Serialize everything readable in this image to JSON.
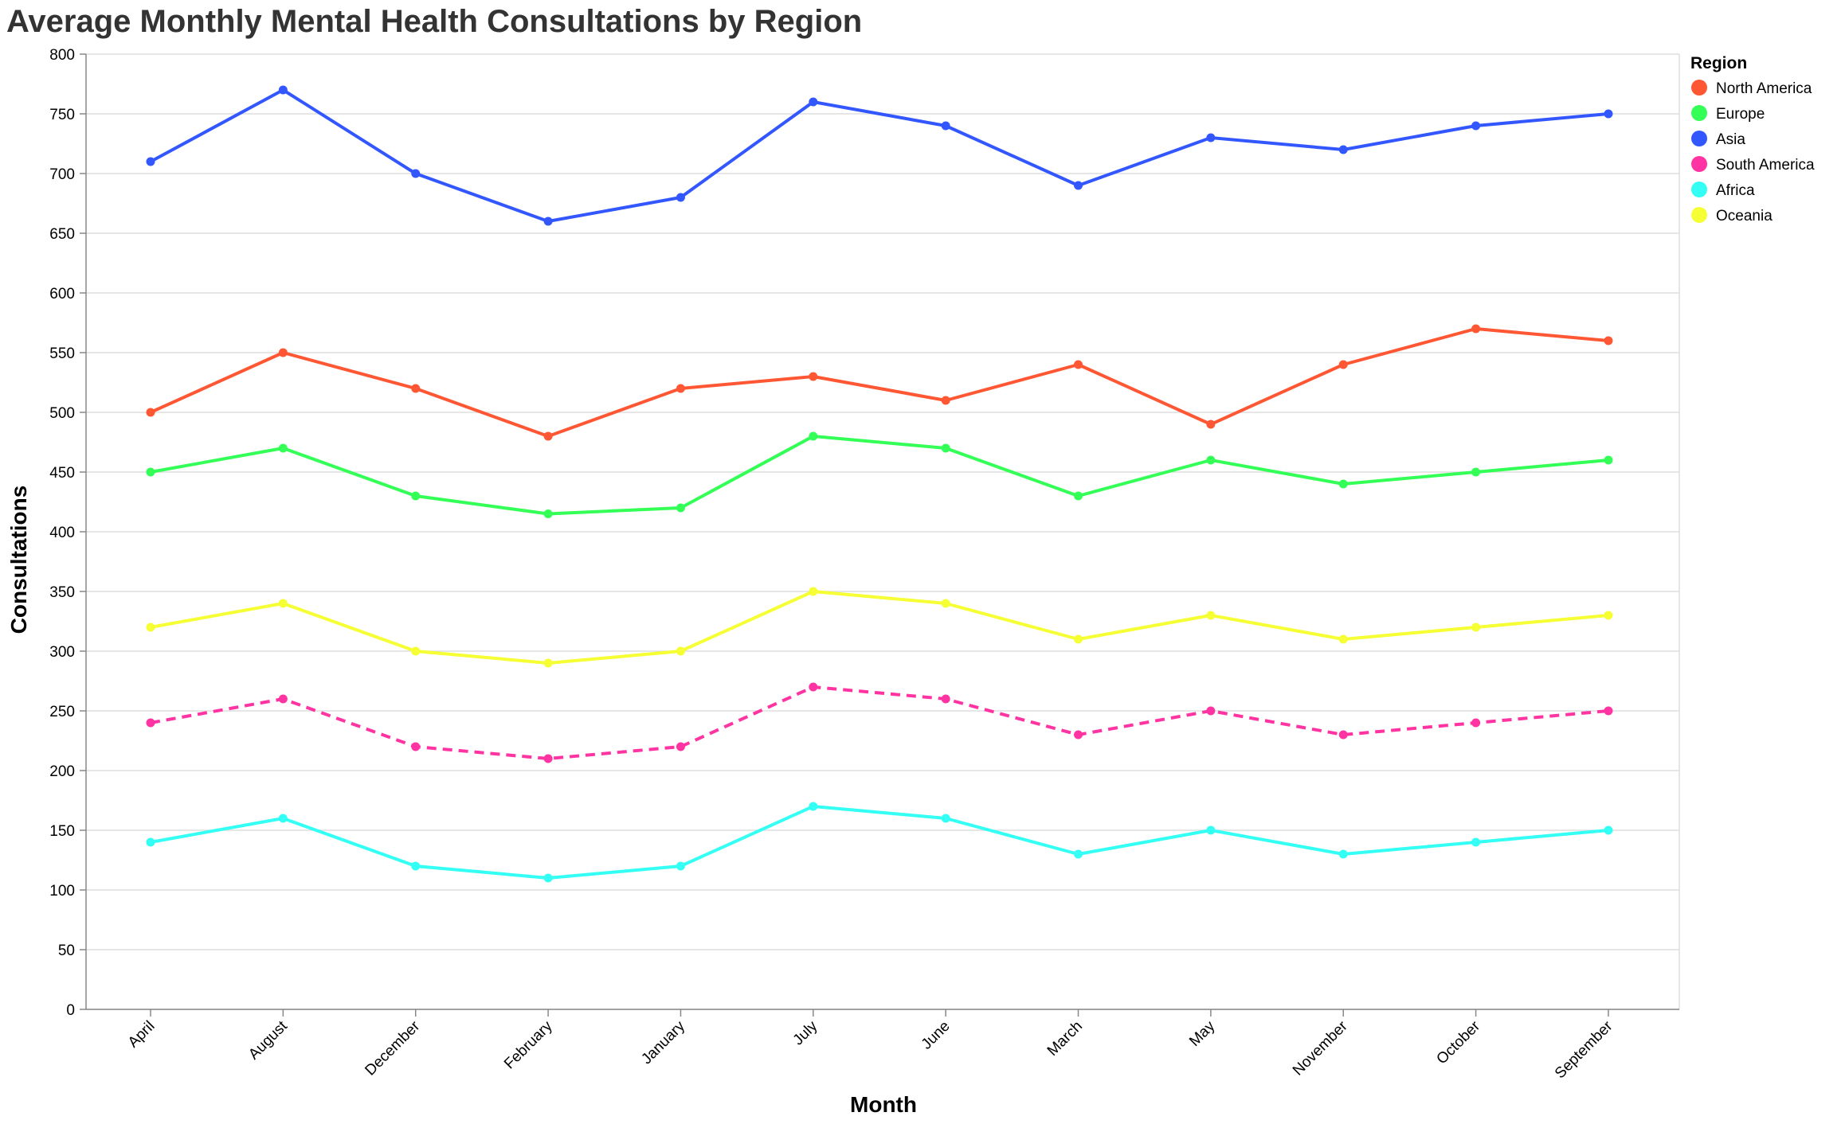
{
  "chart_data": {
    "type": "line",
    "title": "Average Monthly Mental Health Consultations by Region",
    "xlabel": "Month",
    "ylabel": "Consultations",
    "categories": [
      "April",
      "August",
      "December",
      "February",
      "January",
      "July",
      "June",
      "March",
      "May",
      "November",
      "October",
      "September"
    ],
    "ylim": [
      0,
      800
    ],
    "yticks": [
      0,
      50,
      100,
      150,
      200,
      250,
      300,
      350,
      400,
      450,
      500,
      550,
      600,
      650,
      700,
      750,
      800
    ],
    "grid": true,
    "legend": {
      "title": "Region",
      "placement": "top-right"
    },
    "series": [
      {
        "name": "North America",
        "color": "#ff5733",
        "dashed": false,
        "values": [
          500,
          550,
          520,
          480,
          520,
          530,
          510,
          540,
          490,
          540,
          570,
          560
        ]
      },
      {
        "name": "Europe",
        "color": "#33ff57",
        "dashed": false,
        "values": [
          450,
          470,
          430,
          415,
          420,
          480,
          470,
          430,
          460,
          440,
          450,
          460
        ]
      },
      {
        "name": "Asia",
        "color": "#3357ff",
        "dashed": false,
        "values": [
          710,
          770,
          700,
          660,
          680,
          760,
          740,
          690,
          730,
          720,
          740,
          750
        ]
      },
      {
        "name": "South America",
        "color": "#ff33a1",
        "dashed": true,
        "values": [
          240,
          260,
          220,
          210,
          220,
          270,
          260,
          230,
          250,
          230,
          240,
          250
        ]
      },
      {
        "name": "Africa",
        "color": "#33fff5",
        "dashed": false,
        "values": [
          140,
          160,
          120,
          110,
          120,
          170,
          160,
          130,
          150,
          130,
          140,
          150
        ]
      },
      {
        "name": "Oceania",
        "color": "#f5ff33",
        "dashed": false,
        "values": [
          320,
          340,
          300,
          290,
          300,
          350,
          340,
          310,
          330,
          310,
          320,
          330
        ]
      }
    ]
  }
}
